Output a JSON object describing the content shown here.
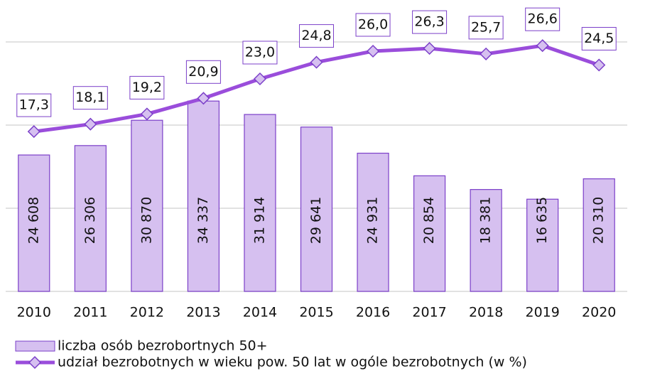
{
  "chart_data": {
    "type": "bar",
    "categories": [
      "2010",
      "2011",
      "2012",
      "2013",
      "2014",
      "2015",
      "2016",
      "2017",
      "2018",
      "2019",
      "2020"
    ],
    "ylim": [
      0,
      45000
    ],
    "yticks": [
      0,
      15000,
      30000,
      45000
    ],
    "y2lim": [
      0,
      27
    ],
    "grid": true,
    "legend": "bottom",
    "series": [
      {
        "name": "liczba osób bezrobortnych 50+",
        "type": "bar",
        "color": "#d6c0f0",
        "edge": "#7b3fc9",
        "values": [
          24608,
          26306,
          30870,
          34337,
          31914,
          29641,
          24931,
          20854,
          18381,
          16635,
          20310
        ],
        "value_labels": [
          "24 608",
          "26 306",
          "30 870",
          "34 337",
          "31 914",
          "29 641",
          "24 931",
          "20 854",
          "18 381",
          "16 635",
          "20 310"
        ]
      },
      {
        "name": "udział bezrobotnych w wieku pow. 50 lat w ogóle bezrobotnych (w %)",
        "type": "line",
        "axis": "y2",
        "color": "#9a4ddb",
        "values": [
          17.3,
          18.1,
          19.2,
          20.9,
          23.0,
          24.8,
          26.0,
          26.3,
          25.7,
          26.6,
          24.5
        ],
        "value_labels": [
          "17,3",
          "18,1",
          "19,2",
          "20,9",
          "23,0",
          "24,8",
          "26,0",
          "26,3",
          "25,7",
          "26,6",
          "24,5"
        ]
      }
    ]
  }
}
